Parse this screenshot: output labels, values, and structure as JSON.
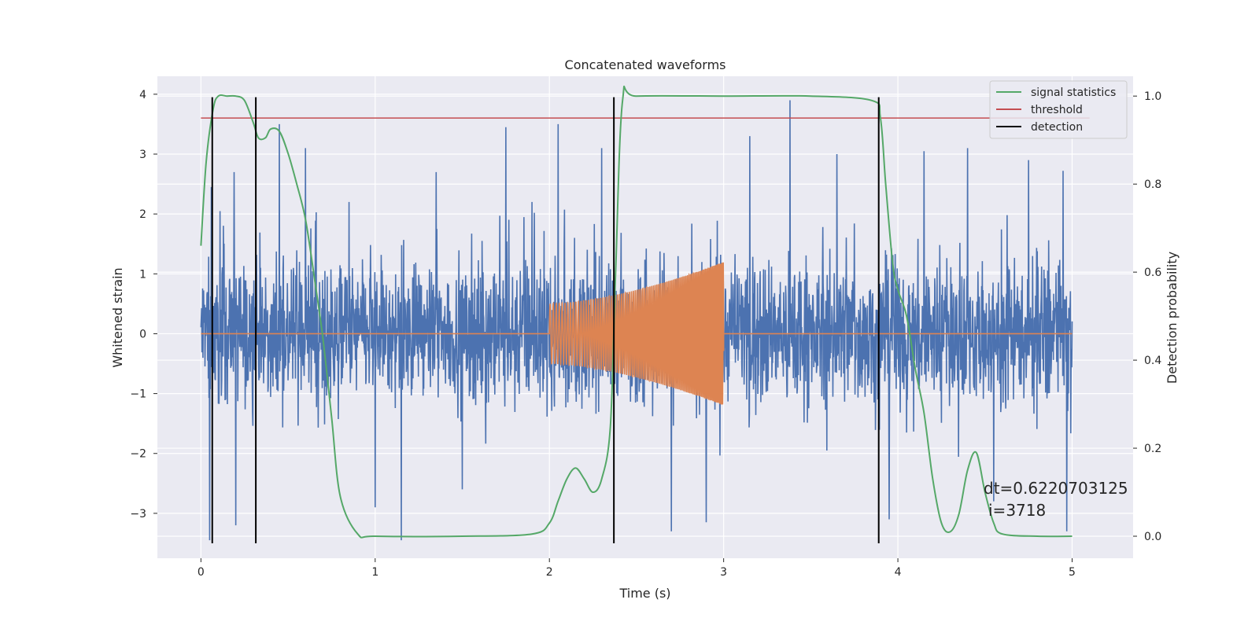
{
  "chart_data": {
    "type": "line",
    "title": "Concatenated waveforms",
    "xlabel": "Time (s)",
    "ylabel": "Whitened strain",
    "ylabel_right": "Detection probability",
    "xlim": [
      -0.25,
      5.35
    ],
    "ylim": [
      -3.75,
      4.3
    ],
    "ylim_right": [
      -0.05,
      1.045
    ],
    "xticks": [
      "0",
      "1",
      "2",
      "3",
      "4",
      "5"
    ],
    "xtick_values": [
      0,
      1,
      2,
      3,
      4,
      5
    ],
    "yticks": [
      "−3",
      "−2",
      "−1",
      "0",
      "1",
      "2",
      "3",
      "4"
    ],
    "ytick_values": [
      -3,
      -2,
      -1,
      0,
      1,
      2,
      3,
      4
    ],
    "yticks_right": [
      "0.0",
      "0.2",
      "0.4",
      "0.6",
      "0.8",
      "1.0"
    ],
    "ytick_values_right": [
      0,
      0.2,
      0.4,
      0.6,
      0.8,
      1.0
    ],
    "grid": true,
    "legend_position": "top-right",
    "series": [
      {
        "name": "",
        "kind": "noisy strain",
        "color": "#4c72b0",
        "x_range": [
          0,
          5
        ],
        "typical_envelope": [
          -1.5,
          1.7
        ],
        "spikes": [
          [
            0.05,
            -3.45
          ],
          [
            0.06,
            2.45
          ],
          [
            0.19,
            2.7
          ],
          [
            0.2,
            -3.2
          ],
          [
            0.45,
            3.5
          ],
          [
            0.6,
            3.1
          ],
          [
            0.85,
            2.2
          ],
          [
            1.0,
            -2.9
          ],
          [
            1.15,
            -3.45
          ],
          [
            1.35,
            2.7
          ],
          [
            1.5,
            -2.6
          ],
          [
            1.75,
            3.45
          ],
          [
            1.9,
            2.2
          ],
          [
            2.05,
            3.5
          ],
          [
            2.3,
            3.1
          ],
          [
            2.7,
            -3.3
          ],
          [
            2.9,
            -3.15
          ],
          [
            3.15,
            3.3
          ],
          [
            3.38,
            3.9
          ],
          [
            3.65,
            3.0
          ],
          [
            3.95,
            -3.1
          ],
          [
            4.15,
            3.05
          ],
          [
            4.4,
            3.1
          ],
          [
            4.55,
            -2.8
          ],
          [
            4.75,
            2.9
          ],
          [
            4.97,
            -3.3
          ]
        ]
      },
      {
        "name": "",
        "kind": "injected chirp",
        "color": "#dd8452",
        "x_range": [
          2.0,
          3.0
        ],
        "amplitude_start": 0.5,
        "amplitude_end": 1.2,
        "frequency_start": 55,
        "frequency_end": 130
      },
      {
        "name": "signal statistics",
        "color": "#55a868",
        "axis": "right",
        "x": [
          0.0,
          0.03,
          0.07,
          0.1,
          0.15,
          0.2,
          0.25,
          0.3,
          0.33,
          0.37,
          0.4,
          0.45,
          0.5,
          0.55,
          0.6,
          0.65,
          0.7,
          0.75,
          0.8,
          0.9,
          1.0,
          1.5,
          1.9,
          2.0,
          2.05,
          2.1,
          2.15,
          2.2,
          2.25,
          2.3,
          2.35,
          2.38,
          2.42,
          2.5,
          3.0,
          3.5,
          3.85,
          3.9,
          3.93,
          3.97,
          4.0,
          4.05,
          4.1,
          4.15,
          4.2,
          4.25,
          4.3,
          4.35,
          4.4,
          4.45,
          4.5,
          4.55,
          4.6,
          4.8,
          5.0
        ],
        "y": [
          0.66,
          0.85,
          0.97,
          1.0,
          1.0,
          1.0,
          0.99,
          0.94,
          0.905,
          0.905,
          0.925,
          0.92,
          0.87,
          0.8,
          0.72,
          0.59,
          0.45,
          0.27,
          0.09,
          0.005,
          0.0,
          0.0,
          0.005,
          0.03,
          0.08,
          0.13,
          0.155,
          0.13,
          0.1,
          0.13,
          0.25,
          0.6,
          0.99,
          1.0,
          1.0,
          1.0,
          0.99,
          0.95,
          0.8,
          0.62,
          0.56,
          0.5,
          0.38,
          0.28,
          0.13,
          0.03,
          0.01,
          0.05,
          0.15,
          0.19,
          0.1,
          0.03,
          0.005,
          0.0,
          0.0
        ]
      },
      {
        "name": "threshold",
        "color": "#c44e52",
        "axis": "right",
        "x": [
          0,
          5.1
        ],
        "y": [
          0.95,
          0.95
        ]
      },
      {
        "name": "detection",
        "color": "#000000",
        "axis": "left",
        "x_values": [
          0.065,
          0.315,
          2.37,
          3.89
        ],
        "y_range": [
          -3.5,
          3.95
        ]
      }
    ],
    "legend": [
      "signal statistics",
      "threshold",
      "detection"
    ],
    "annotations": [
      "dt=0.6220703125",
      "i=3718"
    ]
  }
}
